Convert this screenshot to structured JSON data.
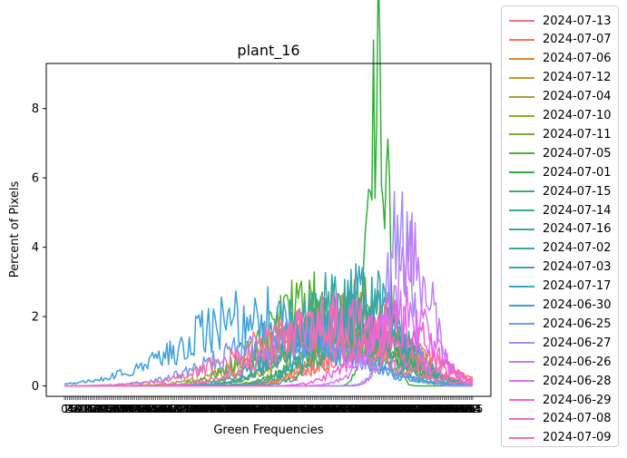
{
  "chart_data": {
    "type": "line",
    "title": "plant_16",
    "xlabel": "Green Frequencies",
    "ylabel": "Percent of Pixels",
    "x_range": [
      0,
      255
    ],
    "ylim": [
      -0.3,
      9.3
    ],
    "y_ticks": [
      0,
      2,
      4,
      6,
      8
    ],
    "grid": false,
    "legend_position": "outside-right",
    "series": [
      {
        "name": "2024-07-13",
        "color": "#f77189",
        "peak_x": 192,
        "peak_y": 1.2,
        "width": 32
      },
      {
        "name": "2024-07-07",
        "color": "#f7754f",
        "peak_x": 198,
        "peak_y": 1.3,
        "width": 30
      },
      {
        "name": "2024-07-06",
        "color": "#dc8932",
        "peak_x": 186,
        "peak_y": 2.2,
        "width": 24
      },
      {
        "name": "2024-07-12",
        "color": "#c39532",
        "peak_x": 176,
        "peak_y": 1.9,
        "width": 30
      },
      {
        "name": "2024-07-04",
        "color": "#ae9d31",
        "peak_x": 160,
        "peak_y": 1.5,
        "width": 38
      },
      {
        "name": "2024-07-10",
        "color": "#97a431",
        "peak_x": 168,
        "peak_y": 2.1,
        "width": 32
      },
      {
        "name": "2024-07-11",
        "color": "#77ab31",
        "peak_x": 182,
        "peak_y": 1.6,
        "width": 28
      },
      {
        "name": "2024-07-05",
        "color": "#50b131",
        "peak_x": 154,
        "peak_y": 2.3,
        "width": 30
      },
      {
        "name": "2024-07-01",
        "color": "#33b03a",
        "peak_x": 196,
        "peak_y": 8.8,
        "width": 6
      },
      {
        "name": "2024-07-15",
        "color": "#35ad6c",
        "peak_x": 180,
        "peak_y": 1.8,
        "width": 26
      },
      {
        "name": "2024-07-14",
        "color": "#36ab82",
        "peak_x": 174,
        "peak_y": 2.0,
        "width": 30
      },
      {
        "name": "2024-07-16",
        "color": "#37a996",
        "peak_x": 190,
        "peak_y": 2.3,
        "width": 22
      },
      {
        "name": "2024-07-02",
        "color": "#38a7a5",
        "peak_x": 170,
        "peak_y": 2.4,
        "width": 26
      },
      {
        "name": "2024-07-03",
        "color": "#39a5b4",
        "peak_x": 184,
        "peak_y": 2.6,
        "width": 24
      },
      {
        "name": "2024-07-17",
        "color": "#3ba3c5",
        "peak_x": 160,
        "peak_y": 1.7,
        "width": 28
      },
      {
        "name": "2024-06-30",
        "color": "#3ca0da",
        "peak_x": 120,
        "peak_y": 2.0,
        "width": 45
      },
      {
        "name": "2024-06-25",
        "color": "#6e9af4",
        "peak_x": 140,
        "peak_y": 1.4,
        "width": 40
      },
      {
        "name": "2024-06-27",
        "color": "#a48cf4",
        "peak_x": 210,
        "peak_y": 4.5,
        "width": 8
      },
      {
        "name": "2024-06-26",
        "color": "#c17ff4",
        "peak_x": 218,
        "peak_y": 3.5,
        "width": 12
      },
      {
        "name": "2024-06-28",
        "color": "#dd71f4",
        "peak_x": 212,
        "peak_y": 2.0,
        "width": 18
      },
      {
        "name": "2024-06-29",
        "color": "#f35fe0",
        "peak_x": 206,
        "peak_y": 1.8,
        "width": 22
      },
      {
        "name": "2024-07-08",
        "color": "#f66bc1",
        "peak_x": 170,
        "peak_y": 1.9,
        "width": 36
      },
      {
        "name": "2024-07-09",
        "color": "#f76fa8",
        "peak_x": 150,
        "peak_y": 1.5,
        "width": 42
      }
    ]
  }
}
